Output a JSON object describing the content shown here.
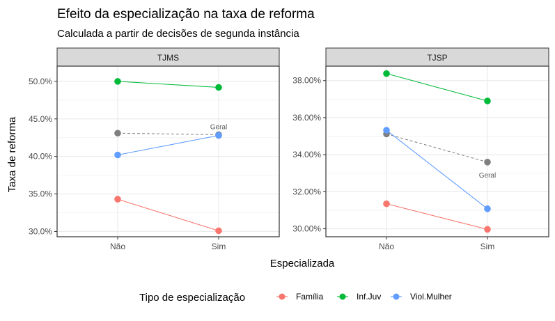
{
  "chart_data": {
    "type": "line",
    "title": "Efeito da especialização na taxa de reforma",
    "subtitle": "Calculada a partir de decisões de segunda instância",
    "xlabel": "Especializada",
    "ylabel": "Taxa de reforma",
    "categories": [
      "Não",
      "Sim"
    ],
    "legend": {
      "title": "Tipo de especialização",
      "placement": "bottom",
      "items": [
        {
          "name": "Família",
          "color": "#F8766D"
        },
        {
          "name": "Inf.Juv",
          "color": "#00BA38"
        },
        {
          "name": "Viol.Mulher",
          "color": "#619CFF"
        }
      ]
    },
    "overall": {
      "label": "Geral",
      "color": "#7f7f7f",
      "line_style": "dashed"
    },
    "grid": true,
    "panels": [
      {
        "name": "TJMS",
        "ylim": [
          0.293,
          0.5203
        ],
        "yticks": [
          0.3,
          0.35,
          0.4,
          0.45,
          0.5
        ],
        "yticklabels": [
          "30.0%",
          "35.0%",
          "40.0%",
          "45.0%",
          "50.0%"
        ],
        "series": [
          {
            "name": "Família",
            "values": [
              0.343,
              0.301
            ]
          },
          {
            "name": "Inf.Juv",
            "values": [
              0.5,
              0.492
            ]
          },
          {
            "name": "Viol.Mulher",
            "values": [
              0.402,
              0.428
            ]
          }
        ],
        "overall_values": [
          0.431,
          0.429
        ]
      },
      {
        "name": "TJSP",
        "ylim": [
          0.2957,
          0.3878
        ],
        "yticks": [
          0.3,
          0.32,
          0.34,
          0.36,
          0.38
        ],
        "yticklabels": [
          "30.00%",
          "32.00%",
          "34.00%",
          "36.00%",
          "38.00%"
        ],
        "series": [
          {
            "name": "Família",
            "values": [
              0.3135,
              0.2997
            ]
          },
          {
            "name": "Inf.Juv",
            "values": [
              0.3838,
              0.369
            ]
          },
          {
            "name": "Viol.Mulher",
            "values": [
              0.3532,
              0.3108
            ]
          }
        ],
        "overall_values": [
          0.3512,
          0.336
        ]
      }
    ]
  }
}
